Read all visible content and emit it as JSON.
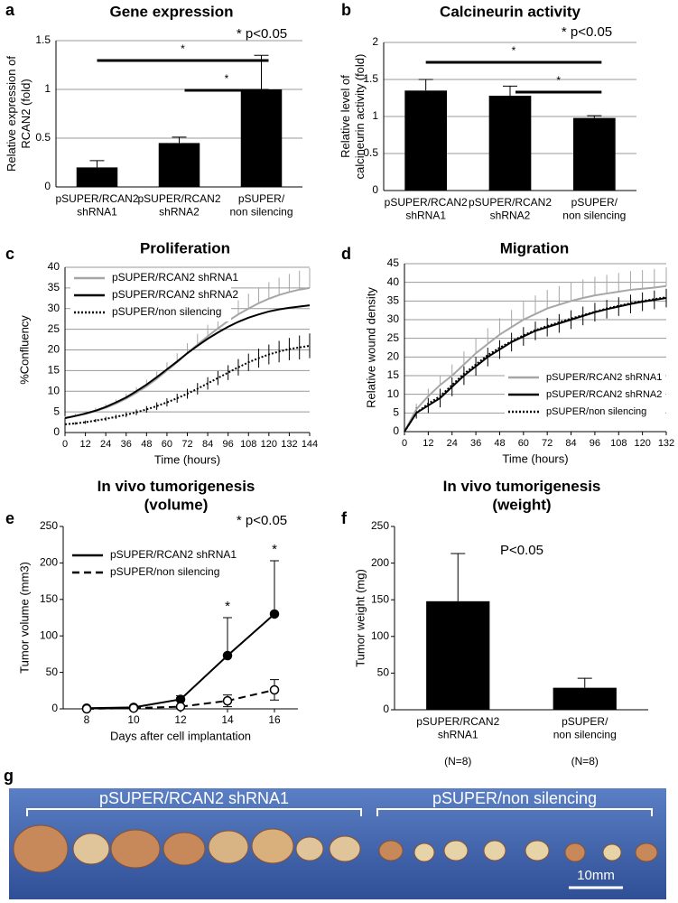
{
  "chart_data": [
    {
      "type": "bar",
      "panel": "a",
      "title": "Gene expression",
      "annotation": "*  p<0.05",
      "ylabel": [
        "Relative expression of",
        "RCAN2 (fold)"
      ],
      "categories": [
        [
          "pSUPER/RCAN2",
          "shRNA1"
        ],
        [
          "pSUPER/RCAN2",
          "shRNA2"
        ],
        [
          "pSUPER/",
          "non silencing"
        ]
      ],
      "values": [
        0.2,
        0.45,
        1.0
      ],
      "errors": [
        0.07,
        0.06,
        0.35
      ],
      "color": "#000000",
      "ylim": [
        0,
        1.5
      ],
      "yticks": [
        0,
        0.5,
        1,
        1.5
      ],
      "grid": true,
      "significance": [
        {
          "from": 0,
          "to": 2,
          "label": "*"
        },
        {
          "from": 1,
          "to": 2,
          "label": "*"
        }
      ]
    },
    {
      "type": "bar",
      "panel": "b",
      "title": "Calcineurin activity",
      "annotation": "*  p<0.05",
      "ylabel": [
        "Relative level of",
        "calcineurin activity (fold)"
      ],
      "categories": [
        [
          "pSUPER/RCAN2",
          "shRNA1"
        ],
        [
          "pSUPER/RCAN2",
          "shRNA2"
        ],
        [
          "pSUPER/",
          "non silencing"
        ]
      ],
      "values": [
        1.35,
        1.28,
        0.98
      ],
      "errors": [
        0.15,
        0.13,
        0.03
      ],
      "color": "#000000",
      "ylim": [
        0,
        2
      ],
      "yticks": [
        0,
        0.5,
        1,
        1.5,
        2
      ],
      "grid": true,
      "significance": [
        {
          "from": 0,
          "to": 2,
          "label": "*"
        },
        {
          "from": 1,
          "to": 2,
          "label": "*"
        }
      ]
    },
    {
      "type": "line",
      "panel": "c",
      "title": "Proliferation",
      "ylabel": "%Confluency",
      "xlabel": "Time (hours)",
      "x": [
        0,
        6,
        12,
        18,
        24,
        30,
        36,
        42,
        48,
        54,
        60,
        66,
        72,
        78,
        84,
        90,
        96,
        102,
        108,
        114,
        120,
        126,
        132,
        138,
        144
      ],
      "xlim": [
        0,
        144
      ],
      "xticks": [
        0,
        12,
        24,
        36,
        48,
        60,
        72,
        84,
        96,
        108,
        120,
        132,
        144
      ],
      "ylim": [
        0,
        40
      ],
      "yticks": [
        0,
        5,
        10,
        15,
        20,
        25,
        30,
        35,
        40
      ],
      "grid": true,
      "legend": "upper left",
      "series": [
        {
          "name": "pSUPER/RCAN2 shRNA1",
          "color": "#a6a6a6",
          "style": "solid",
          "error_direction": "up",
          "values": [
            3.5,
            4,
            4.5,
            5.2,
            6,
            7,
            8.2,
            9.6,
            11.2,
            13,
            15,
            17,
            19.2,
            21.3,
            23.3,
            25.2,
            27,
            28.6,
            30,
            31.3,
            32.4,
            33.3,
            34,
            34.6,
            35
          ],
          "errors": [
            0.5,
            0.6,
            0.7,
            0.8,
            0.9,
            1,
            1.2,
            1.4,
            1.6,
            1.8,
            2,
            2.2,
            2.4,
            2.6,
            2.8,
            3,
            3.2,
            3.4,
            3.6,
            3.8,
            4,
            4.2,
            4.4,
            4.6,
            4.8
          ]
        },
        {
          "name": "pSUPER/RCAN2 shRNA2",
          "color": "#000000",
          "style": "solid",
          "values": [
            3.5,
            4,
            4.6,
            5.3,
            6.2,
            7.3,
            8.5,
            10,
            11.6,
            13.4,
            15.3,
            17.2,
            19.2,
            21,
            22.7,
            24.2,
            25.6,
            26.8,
            27.8,
            28.6,
            29.3,
            29.8,
            30.2,
            30.5,
            30.8
          ]
        },
        {
          "name": "pSUPER/non silencing",
          "color": "#000000",
          "style": "dotted",
          "error_direction": "both",
          "values": [
            2,
            2.2,
            2.5,
            2.9,
            3.3,
            3.8,
            4.3,
            4.9,
            5.6,
            6.4,
            7.3,
            8.3,
            9.4,
            10.6,
            11.9,
            13.2,
            14.5,
            15.8,
            17,
            18,
            18.9,
            19.6,
            20.2,
            20.6,
            21
          ],
          "errors": [
            0.3,
            0.3,
            0.4,
            0.4,
            0.5,
            0.5,
            0.6,
            0.7,
            0.8,
            0.9,
            1,
            1.1,
            1.2,
            1.4,
            1.5,
            1.7,
            1.8,
            2,
            2.1,
            2.3,
            2.4,
            2.6,
            2.7,
            2.9,
            3
          ]
        }
      ]
    },
    {
      "type": "line",
      "panel": "d",
      "title": "Migration",
      "ylabel": "Relative wound density",
      "xlabel": "Time (hours)",
      "x": [
        0,
        6,
        12,
        18,
        24,
        30,
        36,
        42,
        48,
        54,
        60,
        66,
        72,
        78,
        84,
        90,
        96,
        102,
        108,
        114,
        120,
        126,
        132
      ],
      "xlim": [
        0,
        132
      ],
      "xticks": [
        0,
        12,
        24,
        36,
        48,
        60,
        72,
        84,
        96,
        108,
        120,
        132
      ],
      "ylim": [
        0,
        45
      ],
      "yticks": [
        0,
        5,
        10,
        15,
        20,
        25,
        30,
        35,
        40,
        45
      ],
      "grid": true,
      "legend": "lower right",
      "series": [
        {
          "name": "pSUPER/RCAN2 shRNA1",
          "color": "#a6a6a6",
          "style": "solid",
          "error_direction": "up",
          "values": [
            0,
            6,
            9.5,
            12.5,
            15,
            18,
            21,
            23.5,
            26,
            28,
            30,
            31.5,
            33,
            34,
            35,
            35.8,
            36.5,
            37,
            37.5,
            38,
            38.3,
            38.6,
            39
          ],
          "errors": [
            0,
            1.5,
            2,
            2.5,
            3,
            3.5,
            4,
            4.2,
            4.4,
            4.6,
            4.8,
            5,
            5,
            5,
            5,
            5,
            5,
            5,
            5,
            5,
            5,
            5,
            5
          ]
        },
        {
          "name": "pSUPER/RCAN2 shRNA2",
          "color": "#000000",
          "style": "solid",
          "error_direction": "both",
          "values": [
            0,
            5,
            7,
            9,
            12,
            15,
            17.5,
            20,
            22,
            24,
            25.5,
            27,
            28,
            29,
            30,
            31,
            32,
            32.8,
            33.5,
            34.2,
            34.8,
            35.3,
            35.8
          ],
          "errors": [
            0,
            1.5,
            2,
            2.5,
            2.5,
            2.5,
            2.5,
            2.5,
            2.5,
            2.5,
            2.5,
            2.5,
            2.5,
            2.5,
            2.5,
            2.5,
            2.5,
            2.5,
            2.5,
            2.5,
            2.5,
            2.5,
            2.5
          ]
        },
        {
          "name": "pSUPER/non silencing",
          "color": "#000000",
          "style": "dotted",
          "values": [
            0,
            5,
            7.5,
            9.5,
            12.5,
            15.5,
            18,
            20.5,
            22.5,
            24.2,
            25.8,
            27.2,
            28.3,
            29.3,
            30.3,
            31.2,
            32.1,
            33,
            33.7,
            34.4,
            35,
            35.5,
            36
          ]
        }
      ]
    },
    {
      "type": "line",
      "panel": "e",
      "title": [
        "In vivo tumorigenesis",
        "(volume)"
      ],
      "annotation": "*  p<0.05",
      "ylabel": "Tumor volume (mm3)",
      "xlabel": "Days after cell implantation",
      "x": [
        8,
        10,
        12,
        14,
        16
      ],
      "xlim": [
        7,
        17
      ],
      "xticks": [
        8,
        10,
        12,
        14,
        16
      ],
      "ylim": [
        0,
        250
      ],
      "yticks": [
        0,
        50,
        100,
        150,
        200,
        250
      ],
      "grid": false,
      "legend": "upper left",
      "point_annotations": [
        {
          "x": 14,
          "label": "*"
        },
        {
          "x": 16,
          "label": "*"
        }
      ],
      "series": [
        {
          "name": "pSUPER/RCAN2 shRNA1",
          "color": "#000000",
          "style": "solid",
          "marker": "filled",
          "error_direction": "up",
          "values": [
            1,
            2,
            13,
            73,
            130
          ],
          "errors": [
            1,
            2,
            5,
            52,
            73
          ]
        },
        {
          "name": "pSUPER/non silencing",
          "color": "#000000",
          "style": "dashed",
          "marker": "open",
          "error_direction": "both",
          "values": [
            0,
            1,
            3,
            11,
            26
          ],
          "errors": [
            0,
            1,
            2,
            8,
            14
          ]
        }
      ]
    },
    {
      "type": "bar",
      "panel": "f",
      "title": [
        "In vivo tumorigenesis",
        "(weight)"
      ],
      "annotation": "P<0.05",
      "ylabel": "Tumor weight (mg)",
      "categories": [
        [
          "pSUPER/RCAN2",
          "shRNA1"
        ],
        [
          "pSUPER/",
          "non silencing"
        ]
      ],
      "n_labels": [
        "(N=8)",
        "(N=8)"
      ],
      "values": [
        148,
        30
      ],
      "errors": [
        65,
        13
      ],
      "color": "#000000",
      "ylim": [
        0,
        250
      ],
      "yticks": [
        0,
        50,
        100,
        150,
        200,
        250
      ],
      "grid": false
    }
  ],
  "photo": {
    "panel": "g",
    "group_labels": [
      "pSUPER/RCAN2 shRNA1",
      "pSUPER/non silencing"
    ],
    "scale_bar": "10mm"
  }
}
